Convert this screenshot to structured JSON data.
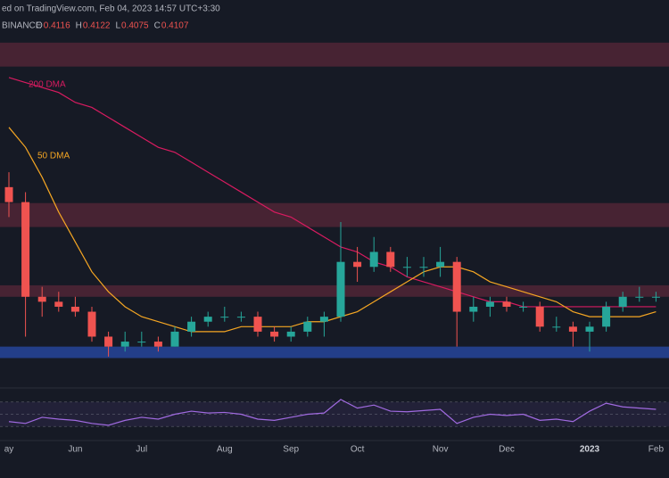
{
  "chart_data": {
    "type": "candlestick",
    "header": "ed on TradingView.com, Feb 04, 2023 14:57 UTC+3:30",
    "exchange": "BINANCE",
    "ohlc_labels": [
      {
        "label": "O",
        "value": "0.4116"
      },
      {
        "label": "H",
        "value": "0.4122"
      },
      {
        "label": "L",
        "value": "0.4075"
      },
      {
        "label": "C",
        "value": "0.4107"
      }
    ],
    "categories": [
      "ay",
      null,
      null,
      null,
      "Jun",
      null,
      null,
      null,
      "Jul",
      null,
      null,
      null,
      null,
      "Aug",
      null,
      null,
      null,
      "Sep",
      null,
      null,
      null,
      "Oct",
      null,
      null,
      null,
      null,
      "Nov",
      null,
      null,
      null,
      "Dec",
      null,
      null,
      null,
      null,
      "2023",
      null,
      null,
      null,
      "Feb"
    ],
    "open": [
      0.63,
      0.6,
      0.41,
      0.4,
      0.39,
      0.38,
      0.33,
      0.31,
      0.32,
      0.32,
      0.31,
      0.34,
      0.36,
      0.37,
      0.37,
      0.37,
      0.34,
      0.33,
      0.34,
      0.36,
      0.37,
      0.48,
      0.47,
      0.5,
      0.47,
      0.47,
      0.47,
      0.48,
      0.38,
      0.39,
      0.4,
      0.39,
      0.39,
      0.35,
      0.35,
      0.34,
      0.35,
      0.39,
      0.41,
      0.41
    ],
    "high": [
      0.66,
      0.62,
      0.43,
      0.42,
      0.41,
      0.39,
      0.34,
      0.34,
      0.34,
      0.33,
      0.35,
      0.37,
      0.38,
      0.39,
      0.38,
      0.38,
      0.35,
      0.35,
      0.37,
      0.38,
      0.56,
      0.51,
      0.53,
      0.51,
      0.49,
      0.49,
      0.51,
      0.49,
      0.41,
      0.41,
      0.41,
      0.4,
      0.4,
      0.37,
      0.36,
      0.36,
      0.4,
      0.42,
      0.43,
      0.42
    ],
    "low": [
      0.57,
      0.33,
      0.37,
      0.38,
      0.37,
      0.32,
      0.29,
      0.3,
      0.31,
      0.3,
      0.31,
      0.33,
      0.35,
      0.36,
      0.36,
      0.33,
      0.32,
      0.32,
      0.33,
      0.33,
      0.36,
      0.44,
      0.46,
      0.46,
      0.45,
      0.45,
      0.45,
      0.31,
      0.36,
      0.37,
      0.38,
      0.38,
      0.34,
      0.34,
      0.31,
      0.3,
      0.34,
      0.38,
      0.4,
      0.4
    ],
    "close": [
      0.6,
      0.41,
      0.4,
      0.39,
      0.38,
      0.33,
      0.31,
      0.32,
      0.32,
      0.31,
      0.34,
      0.36,
      0.37,
      0.37,
      0.37,
      0.34,
      0.33,
      0.34,
      0.36,
      0.37,
      0.48,
      0.47,
      0.5,
      0.47,
      0.47,
      0.47,
      0.48,
      0.38,
      0.39,
      0.4,
      0.39,
      0.39,
      0.35,
      0.35,
      0.34,
      0.35,
      0.39,
      0.41,
      0.41,
      0.41
    ],
    "up_color": "#26a69a",
    "down_color": "#ef5350",
    "ylim": [
      0.236,
      0.934
    ],
    "series": [
      {
        "name": "200 DMA",
        "color": "#d81b60",
        "values": [
          0.85,
          0.84,
          0.83,
          0.82,
          0.8,
          0.79,
          0.77,
          0.75,
          0.73,
          0.71,
          0.7,
          0.68,
          0.66,
          0.64,
          0.62,
          0.6,
          0.58,
          0.57,
          0.55,
          0.53,
          0.51,
          0.5,
          0.48,
          0.47,
          0.45,
          0.44,
          0.43,
          0.42,
          0.41,
          0.4,
          0.4,
          0.39,
          0.39,
          0.39,
          0.39,
          0.39,
          0.39,
          0.39,
          0.39,
          0.39
        ]
      },
      {
        "name": "50 DMA",
        "color": "#f5a623",
        "values": [
          0.75,
          0.71,
          0.65,
          0.58,
          0.52,
          0.46,
          0.42,
          0.39,
          0.37,
          0.36,
          0.35,
          0.34,
          0.34,
          0.34,
          0.35,
          0.35,
          0.35,
          0.35,
          0.36,
          0.36,
          0.37,
          0.38,
          0.4,
          0.42,
          0.44,
          0.46,
          0.47,
          0.47,
          0.46,
          0.44,
          0.43,
          0.42,
          0.41,
          0.4,
          0.38,
          0.37,
          0.37,
          0.37,
          0.37,
          0.38
        ]
      }
    ],
    "zones": [
      {
        "from": 0.872,
        "to": 0.92,
        "color": "rgba(200,60,90,0.28)"
      },
      {
        "from": 0.55,
        "to": 0.598,
        "color": "rgba(200,60,90,0.28)"
      },
      {
        "from": 0.41,
        "to": 0.433,
        "color": "rgba(200,60,90,0.28)"
      },
      {
        "from": 0.287,
        "to": 0.31,
        "color": "rgba(40,75,170,0.75)"
      }
    ],
    "rsi": {
      "color": "#a06ae0",
      "ylim": [
        10,
        90
      ],
      "band": [
        30,
        70
      ],
      "levels": [
        30,
        50,
        70
      ],
      "values": [
        38,
        35,
        45,
        42,
        40,
        35,
        32,
        40,
        45,
        42,
        50,
        55,
        52,
        53,
        50,
        42,
        40,
        45,
        50,
        52,
        74,
        60,
        65,
        55,
        54,
        56,
        58,
        35,
        45,
        50,
        48,
        50,
        40,
        42,
        38,
        55,
        68,
        62,
        60,
        58
      ]
    }
  }
}
